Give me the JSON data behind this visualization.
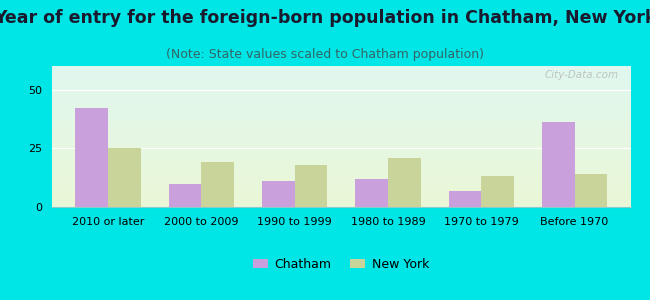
{
  "title": "Year of entry for the foreign-born population in Chatham, New York",
  "subtitle": "(Note: State values scaled to Chatham population)",
  "categories": [
    "2010 or later",
    "2000 to 2009",
    "1990 to 1999",
    "1980 to 1989",
    "1970 to 1979",
    "Before 1970"
  ],
  "chatham_values": [
    42,
    10,
    11,
    12,
    7,
    36
  ],
  "ny_values": [
    25,
    19,
    18,
    21,
    13,
    14
  ],
  "chatham_color": "#c9a0dc",
  "ny_color": "#c8d49a",
  "bg_color": "#00e5e5",
  "ylim": [
    0,
    60
  ],
  "yticks": [
    0,
    25,
    50
  ],
  "bar_width": 0.35,
  "title_fontsize": 12.5,
  "subtitle_fontsize": 9,
  "tick_fontsize": 8,
  "legend_labels": [
    "Chatham",
    "New York"
  ],
  "watermark": "City-Data.com"
}
